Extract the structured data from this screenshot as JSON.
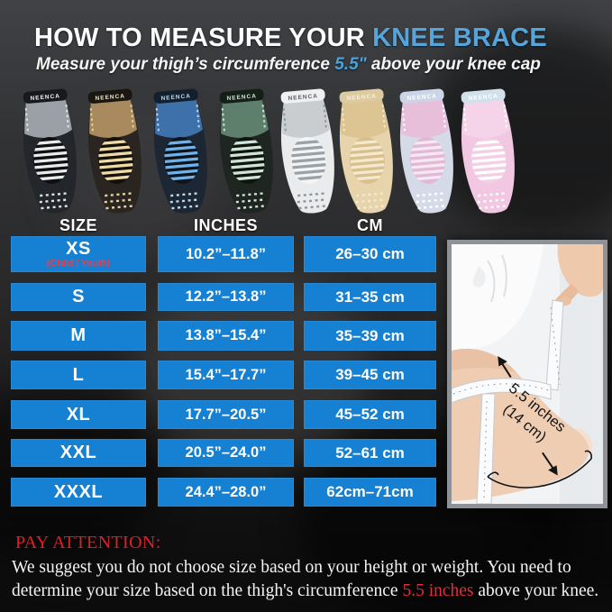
{
  "header": {
    "title_prefix": "HOW TO MEASURE YOUR ",
    "title_highlight": "KNEE BRACE",
    "subtitle_pre": "Measure your thigh’s circumference ",
    "subtitle_highlight": "5.5\"",
    "subtitle_post": " above your knee cap"
  },
  "brand": "NEENCA",
  "braces": [
    {
      "name": "black-gray",
      "body": "#23262a",
      "top": "#9aa0a6",
      "band": "#17191c",
      "band_text": "#f2f4f5",
      "pad": "#0e0f11",
      "stripe": "#e8eaec",
      "dots": "#dfe3e6"
    },
    {
      "name": "brown-khaki",
      "body": "#2a2521",
      "top": "#a88a5e",
      "band": "#1a1612",
      "band_text": "#f0e4c2",
      "pad": "#141009",
      "stripe": "#eddaa6",
      "dots": "#e4d2a2"
    },
    {
      "name": "blue-black",
      "body": "#1d2733",
      "top": "#3e70a9",
      "band": "#141f2d",
      "band_text": "#bcd8f0",
      "pad": "#0d141c",
      "stripe": "#6fb1e8",
      "dots": "#bcd8f0"
    },
    {
      "name": "green-black",
      "body": "#1f2521",
      "top": "#5d7f6c",
      "band": "#141f18",
      "band_text": "#cfe3d6",
      "pad": "#0e1410",
      "stripe": "#cfe3d6",
      "dots": "#cfe3d6"
    },
    {
      "name": "white-gray",
      "body": "#e9ebec",
      "top": "#c9cdd0",
      "band": "#eef0f1",
      "band_text": "#5a6064",
      "pad": "#f3f4f5",
      "stripe": "#9aa2a8",
      "dots": "#8f969b"
    },
    {
      "name": "beige",
      "body": "#e7d3ac",
      "top": "#dcc493",
      "band": "#decaa1",
      "band_text": "#f8f0da",
      "pad": "#d8bf8e",
      "stripe": "#f4e9cd",
      "dots": "#f4e9cd"
    },
    {
      "name": "lavender-pink",
      "body": "#d5dae9",
      "top": "#e7bfdb",
      "band": "#ccd5e7",
      "band_text": "#ffffff",
      "pad": "#e1b9d7",
      "stripe": "#f6e7f3",
      "dots": "#ffffff"
    },
    {
      "name": "pink-white",
      "body": "#f1c7e1",
      "top": "#f5d4e9",
      "band": "#d0e1eb",
      "band_text": "#ffffff",
      "pad": "#f3cee5",
      "stripe": "#ffffff",
      "dots": "#ffffff"
    }
  ],
  "table": {
    "columns": [
      "SIZE",
      "INCHES",
      "CM"
    ],
    "rows": [
      {
        "size": "XS",
        "size_note": "(Child / Youth)",
        "inches": "10.2”–11.8”",
        "cm": "26–30 cm"
      },
      {
        "size": "S",
        "inches": "12.2”–13.8”",
        "cm": "31–35 cm"
      },
      {
        "size": "M",
        "inches": "13.8”–15.4”",
        "cm": "35–39 cm"
      },
      {
        "size": "L",
        "inches": "15.4”–17.7”",
        "cm": "39–45 cm"
      },
      {
        "size": "XL",
        "inches": "17.7”–20.5”",
        "cm": "45–52 cm"
      },
      {
        "size": "XXL",
        "inches": "20.5”–24.0”",
        "cm": "52–61 cm"
      },
      {
        "size": "XXXL",
        "inches": "24.4”–28.0”",
        "cm": "62cm–71cm"
      }
    ]
  },
  "photo": {
    "annotation_line1": "5.5 inches",
    "annotation_line2": "(14 cm)"
  },
  "footer": {
    "attention_label": "PAY ATTENTION:",
    "note_line1": "We suggest you do not choose size based on your height or weight. You need to",
    "note_line2_pre": "determine your size based on the thigh's circumference ",
    "note_line2_highlight": "5.5 inches",
    "note_line2_post": " above your knee."
  },
  "colors": {
    "title_highlight_blue": "#56a4da",
    "subtitle_blue": "#4aa0d8",
    "cell_blue": "#1680d2",
    "size_note_red": "#f43a44",
    "attention_red": "#de1f27",
    "note_red": "#e03038",
    "table_text": "#ffffff"
  }
}
